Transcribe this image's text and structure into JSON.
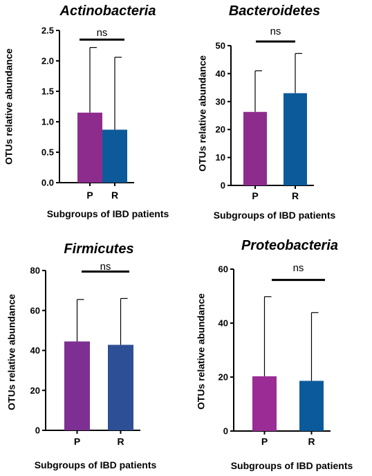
{
  "chart_data": [
    {
      "type": "bar",
      "title": "Actinobacteria",
      "categories": [
        "P",
        "R"
      ],
      "values": [
        1.15,
        0.87
      ],
      "error_upper": [
        2.22,
        2.06
      ],
      "colors": [
        "#8e2c8e",
        "#0c5a9a"
      ],
      "xlabel": "Subgroups of IBD patients",
      "ylabel": "OTUs relative abundance",
      "ylim": [
        0,
        2.5
      ],
      "yticks": [
        0.0,
        0.5,
        1.0,
        1.5,
        2.0,
        2.5
      ],
      "ytick_labels": [
        "0.0",
        "0.5",
        "1.0",
        "1.5",
        "2.0",
        "2.5"
      ],
      "significance": "ns",
      "significance_level": 2.35
    },
    {
      "type": "bar",
      "title": "Bacteroidetes",
      "categories": [
        "P",
        "R"
      ],
      "values": [
        26.3,
        33.0
      ],
      "error_upper": [
        41.0,
        47.2
      ],
      "colors": [
        "#8e2c8e",
        "#0c5a9a"
      ],
      "xlabel": "Subgroups of IBD patients",
      "ylabel": "OTUs relative abundance",
      "ylim": [
        0,
        50
      ],
      "yticks": [
        0,
        10,
        20,
        30,
        40,
        50
      ],
      "ytick_labels": [
        "0",
        "10",
        "20",
        "30",
        "40",
        "50"
      ],
      "significance": "ns",
      "significance_level": 51.5
    },
    {
      "type": "bar",
      "title": "Firmicutes",
      "categories": [
        "P",
        "R"
      ],
      "values": [
        44.5,
        42.8
      ],
      "error_upper": [
        65.5,
        66.0
      ],
      "colors": [
        "#7e2f93",
        "#2d4f96"
      ],
      "xlabel": "Subgroups of IBD patients",
      "ylabel": "OTUs relative abundance",
      "ylim": [
        0,
        80
      ],
      "yticks": [
        0,
        20,
        40,
        60,
        80
      ],
      "ytick_labels": [
        "0",
        "20",
        "40",
        "60",
        "80"
      ],
      "significance": "ns",
      "significance_level": 79.5
    },
    {
      "type": "bar",
      "title": "Proteobacteria",
      "categories": [
        "P",
        "R"
      ],
      "values": [
        20.3,
        18.6
      ],
      "error_upper": [
        49.8,
        43.9
      ],
      "colors": [
        "#9b2c96",
        "#0b5a9b"
      ],
      "xlabel": "Subgroups of IBD patients",
      "ylabel": "OTUs relative abundance",
      "ylim": [
        0,
        60
      ],
      "yticks": [
        0,
        20,
        40,
        60
      ],
      "ytick_labels": [
        "0",
        "20",
        "40",
        "60"
      ],
      "significance": "ns",
      "significance_level": 56.0
    }
  ]
}
